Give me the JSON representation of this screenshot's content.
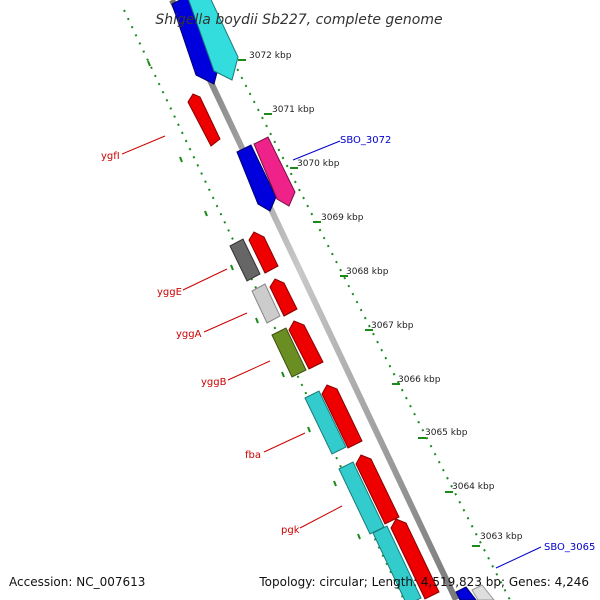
{
  "title": "Shigella boydii Sb227, complete genome",
  "footer": {
    "accession": "Accession: NC_007613",
    "summary": "Topology: circular; Length: 4,519,823 bp; Genes: 4,246"
  },
  "colors": {
    "backbone": "#8a8a8a",
    "dotted_track": "#1a8a1a",
    "gene_label": "#cc0000",
    "locus_label": "#0000cc"
  },
  "scale_labels": [
    "3072 kbp",
    "3071 kbp",
    "3070 kbp",
    "3069 kbp",
    "3068 kbp",
    "3067 kbp",
    "3066 kbp",
    "3065 kbp",
    "3064 kbp",
    "3063 kbp"
  ],
  "gene_labels": [
    "ygfI",
    "yggE",
    "yggA",
    "yggB",
    "fba",
    "pgk"
  ],
  "locus_labels": [
    "SBO_3072",
    "SBO_3065"
  ],
  "features": [
    {
      "color": "#0000dd",
      "strand": "rev"
    },
    {
      "color": "#33dddd",
      "strand": "rev"
    },
    {
      "color": "#ee0000",
      "strand": "fwd"
    },
    {
      "color": "#0000dd",
      "strand": "rev"
    },
    {
      "color": "#ee2288",
      "strand": "rev"
    },
    {
      "color": "#666666",
      "strand": "fwd"
    },
    {
      "color": "#ee0000",
      "strand": "fwd"
    },
    {
      "color": "#cccccc",
      "strand": "fwd"
    },
    {
      "color": "#ee0000",
      "strand": "fwd"
    },
    {
      "color": "#6b8e23",
      "strand": "fwd"
    },
    {
      "color": "#ee0000",
      "strand": "fwd"
    },
    {
      "color": "#33cccc",
      "strand": "fwd"
    },
    {
      "color": "#ee0000",
      "strand": "fwd"
    },
    {
      "color": "#33cccc",
      "strand": "fwd"
    },
    {
      "color": "#ee0000",
      "strand": "fwd"
    },
    {
      "color": "#33cccc",
      "strand": "fwd"
    },
    {
      "color": "#ee0000",
      "strand": "fwd"
    },
    {
      "color": "#0000dd",
      "strand": "rev"
    },
    {
      "color": "#dddddd",
      "strand": "rev"
    }
  ]
}
